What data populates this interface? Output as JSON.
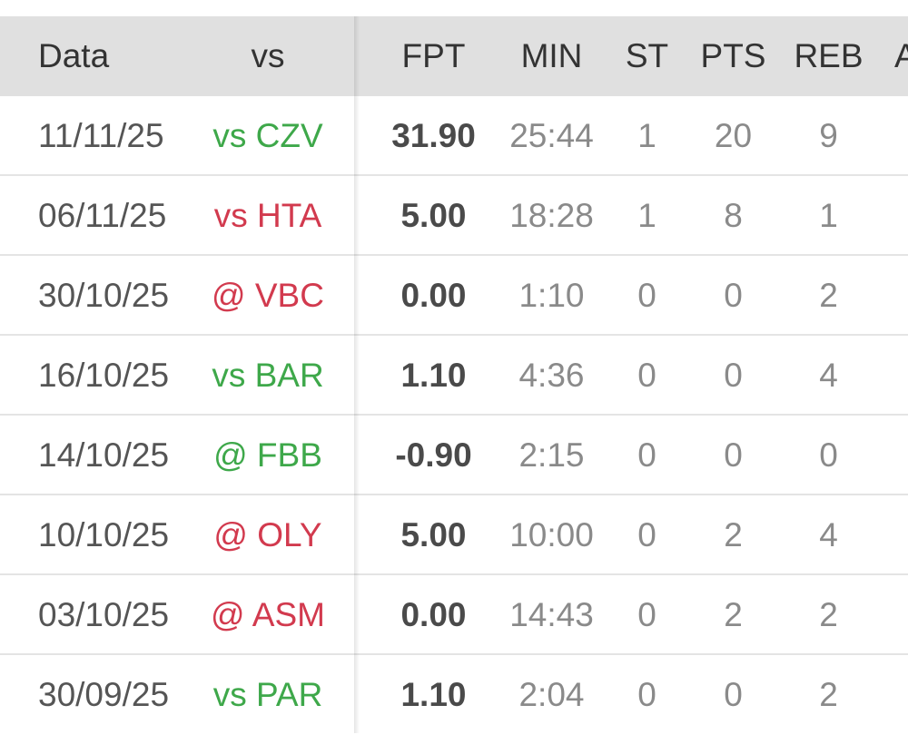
{
  "columns": {
    "date": "Data",
    "opponent": "vs",
    "fpt": "FPT",
    "min": "MIN",
    "st": "ST",
    "pts": "PTS",
    "reb": "REB",
    "ast": "A"
  },
  "colors": {
    "win": "#3ea84a",
    "loss": "#d23a4e"
  },
  "rows": [
    {
      "date": "11/11/25",
      "opponent": "vs CZV",
      "result": "win",
      "fpt": "31.90",
      "min": "25:44",
      "st": "1",
      "pts": "20",
      "reb": "9"
    },
    {
      "date": "06/11/25",
      "opponent": "vs HTA",
      "result": "loss",
      "fpt": "5.00",
      "min": "18:28",
      "st": "1",
      "pts": "8",
      "reb": "1"
    },
    {
      "date": "30/10/25",
      "opponent": "@ VBC",
      "result": "loss",
      "fpt": "0.00",
      "min": "1:10",
      "st": "0",
      "pts": "0",
      "reb": "2"
    },
    {
      "date": "16/10/25",
      "opponent": "vs BAR",
      "result": "win",
      "fpt": "1.10",
      "min": "4:36",
      "st": "0",
      "pts": "0",
      "reb": "4"
    },
    {
      "date": "14/10/25",
      "opponent": "@ FBB",
      "result": "win",
      "fpt": "-0.90",
      "min": "2:15",
      "st": "0",
      "pts": "0",
      "reb": "0"
    },
    {
      "date": "10/10/25",
      "opponent": "@ OLY",
      "result": "loss",
      "fpt": "5.00",
      "min": "10:00",
      "st": "0",
      "pts": "2",
      "reb": "4"
    },
    {
      "date": "03/10/25",
      "opponent": "@ ASM",
      "result": "loss",
      "fpt": "0.00",
      "min": "14:43",
      "st": "0",
      "pts": "2",
      "reb": "2"
    },
    {
      "date": "30/09/25",
      "opponent": "vs PAR",
      "result": "win",
      "fpt": "1.10",
      "min": "2:04",
      "st": "0",
      "pts": "0",
      "reb": "2"
    }
  ]
}
